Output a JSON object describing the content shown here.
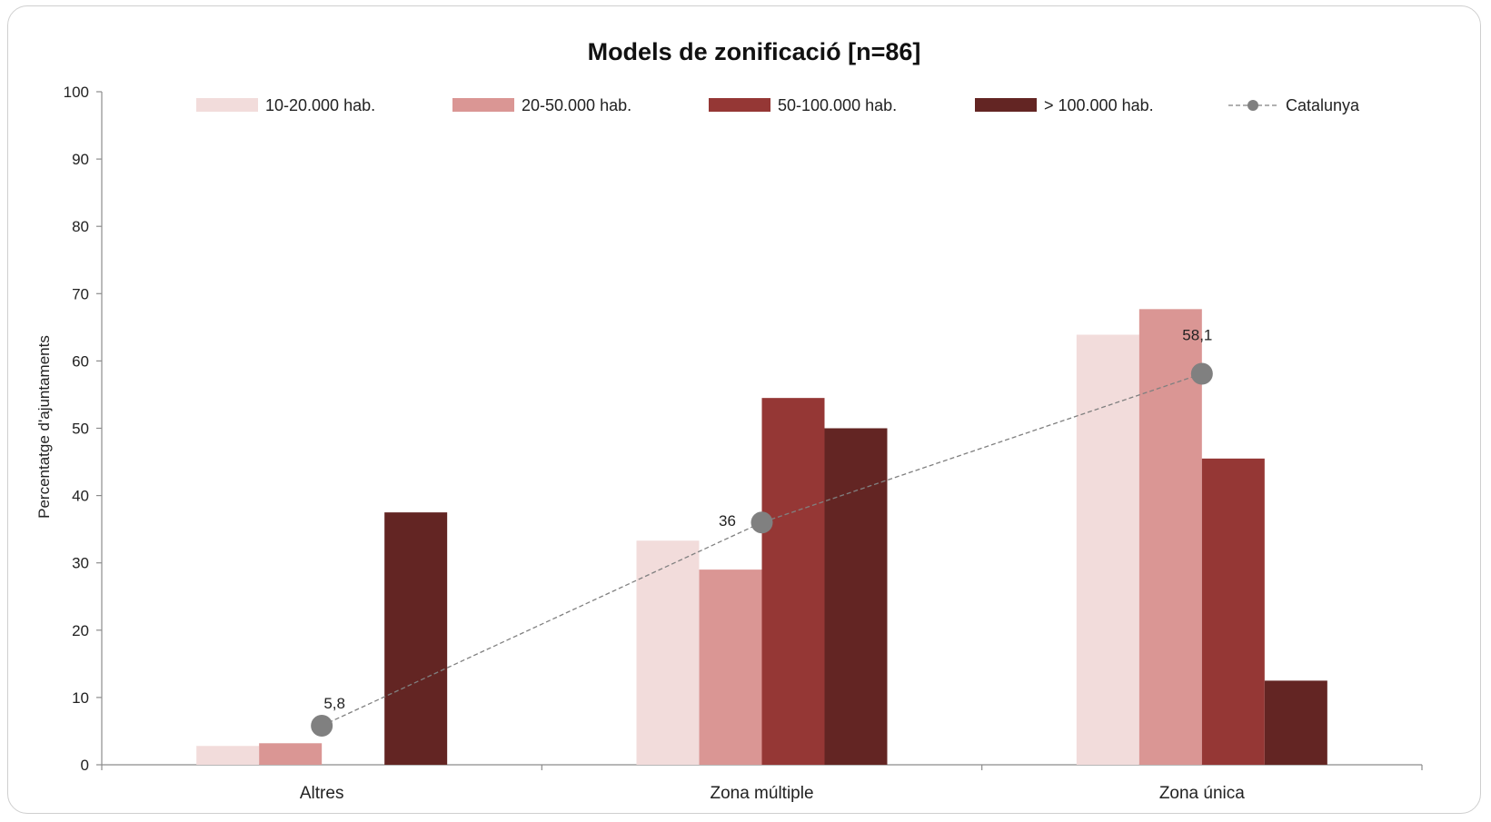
{
  "chart_data": {
    "type": "bar",
    "title": "Models de zonificació [n=86]",
    "xlabel": "",
    "ylabel": "Percentatge d'ajuntaments",
    "ylim": [
      0,
      100
    ],
    "yticks": [
      0,
      10,
      20,
      30,
      40,
      50,
      60,
      70,
      80,
      90,
      100
    ],
    "categories": [
      "Altres",
      "Zona múltiple",
      "Zona única"
    ],
    "series": [
      {
        "name": "10-20.000 hab.",
        "type": "bar",
        "color": "#f2dcdb",
        "values": [
          2.8,
          33.3,
          63.9
        ]
      },
      {
        "name": "20-50.000 hab.",
        "type": "bar",
        "color": "#da9694",
        "values": [
          3.2,
          29.0,
          67.7
        ]
      },
      {
        "name": "50-100.000 hab.",
        "type": "bar",
        "color": "#953735",
        "values": [
          0,
          54.5,
          45.5
        ]
      },
      {
        "name": "> 100.000 hab.",
        "type": "bar",
        "color": "#632523",
        "values": [
          37.5,
          50.0,
          12.5
        ]
      },
      {
        "name": "Catalunya",
        "type": "line",
        "color": "#808080",
        "values": [
          5.8,
          36,
          58.1
        ],
        "labels": [
          "5,8",
          "36",
          "58,1"
        ]
      }
    ],
    "legend": "top",
    "grid": false
  }
}
